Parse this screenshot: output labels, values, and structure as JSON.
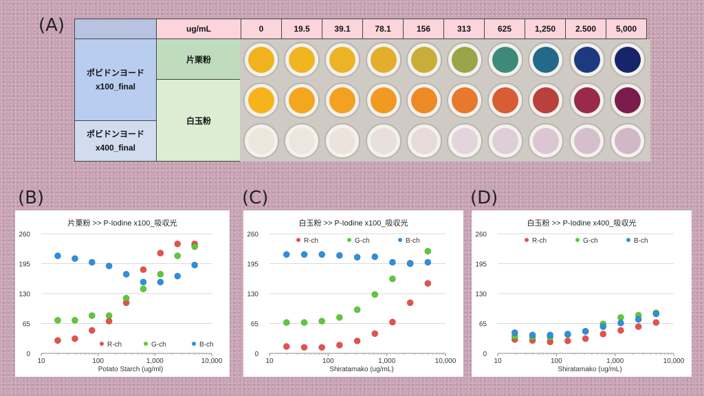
{
  "panels": {
    "a": "(A)",
    "b": "(B)",
    "c": "(C)",
    "d": "(D)"
  },
  "table": {
    "header_unit": "ug/mL",
    "concentrations": [
      "0",
      "19.5",
      "39.1",
      "78.1",
      "156",
      "313",
      "625",
      "1,250",
      "2.500",
      "5,000"
    ],
    "reagent1": [
      "ポビドンヨード",
      "x100_final"
    ],
    "reagent2": [
      "ポビドンヨード",
      "x400_final"
    ],
    "sample1": "片栗粉",
    "sample2": "白玉粉"
  },
  "colors": {
    "row1": [
      "#f2b21e",
      "#f0b520",
      "#ecb324",
      "#e4ad2a",
      "#c8ae38",
      "#9aa448",
      "#3e8a7a",
      "#236a8a",
      "#1b3a80",
      "#16246a"
    ],
    "row2": [
      "#f6b31c",
      "#f4a61e",
      "#f2a120",
      "#f09a22",
      "#ee8a26",
      "#e8782c",
      "#d85c34",
      "#b8413c",
      "#9a2a4c",
      "#7a1d4c"
    ],
    "row3": [
      "#ece6dc",
      "#ece6de",
      "#ebe3dc",
      "#e9dfdb",
      "#e6dadb",
      "#e4d4dc",
      "#dfcdd8",
      "#dbc6d3",
      "#d6bfcd",
      "#d1b8c6"
    ],
    "r": "#e8504a",
    "g": "#5cc93a",
    "b": "#2e8fe0"
  },
  "chart_data": [
    {
      "type": "scatter",
      "title": "片栗粉 >> P-Iodine x100_吸収光",
      "xlabel": "Potato Starch (ug/ml)",
      "ylabel": "",
      "x_scale": "log",
      "xlim": [
        10,
        10000
      ],
      "ylim": [
        0,
        260
      ],
      "x_ticks": [
        "10",
        "100",
        "1,000",
        "10,000"
      ],
      "y_ticks": [
        "0",
        "65",
        "130",
        "195",
        "260"
      ],
      "grid": "horizontal",
      "legend_placement": "bottom-right",
      "x": [
        19.5,
        39.1,
        78.1,
        156,
        313,
        625,
        1250,
        2500,
        5000
      ],
      "series": [
        {
          "name": "R-ch",
          "values": [
            28,
            32,
            50,
            70,
            110,
            182,
            218,
            238,
            238
          ]
        },
        {
          "name": "G-ch",
          "values": [
            72,
            72,
            82,
            82,
            120,
            140,
            172,
            212,
            232
          ]
        },
        {
          "name": "B-ch",
          "values": [
            212,
            206,
            198,
            190,
            172,
            155,
            155,
            168,
            192
          ]
        }
      ]
    },
    {
      "type": "scatter",
      "title": "白玉粉 >> P-Iodine x100_吸収光",
      "xlabel": "Shiratamako (ug/mL)",
      "ylabel": "",
      "x_scale": "log",
      "xlim": [
        10,
        10000
      ],
      "ylim": [
        0,
        260
      ],
      "x_ticks": [
        "10",
        "100",
        "1,000",
        "10,000"
      ],
      "y_ticks": [
        "0",
        "65",
        "130",
        "195",
        "260"
      ],
      "grid": "horizontal",
      "legend_placement": "top-left",
      "x": [
        19.5,
        39.1,
        78.1,
        156,
        313,
        625,
        1250,
        2500,
        5000
      ],
      "series": [
        {
          "name": "R-ch",
          "values": [
            15,
            13,
            13,
            18,
            27,
            43,
            68,
            110,
            152
          ]
        },
        {
          "name": "G-ch",
          "values": [
            67,
            67,
            70,
            78,
            95,
            128,
            162,
            196,
            222
          ]
        },
        {
          "name": "B-ch",
          "values": [
            215,
            215,
            215,
            213,
            209,
            210,
            198,
            195,
            198
          ]
        }
      ]
    },
    {
      "type": "scatter",
      "title": "白玉粉 >> P-Iodine x400_吸収光",
      "xlabel": "Shiratamako (ug/mL)",
      "ylabel": "",
      "x_scale": "log",
      "xlim": [
        10,
        10000
      ],
      "ylim": [
        0,
        260
      ],
      "x_ticks": [
        "10",
        "100",
        "1,000",
        "10,000"
      ],
      "y_ticks": [
        "0",
        "65",
        "130",
        "195",
        "260"
      ],
      "grid": "horizontal",
      "legend_placement": "top-left",
      "x": [
        19.5,
        39.1,
        78.1,
        156,
        313,
        625,
        1250,
        2500,
        5000
      ],
      "series": [
        {
          "name": "R-ch",
          "values": [
            30,
            28,
            25,
            27,
            32,
            42,
            50,
            58,
            67
          ]
        },
        {
          "name": "G-ch",
          "values": [
            37,
            35,
            35,
            41,
            48,
            64,
            78,
            83,
            88
          ]
        },
        {
          "name": "B-ch",
          "values": [
            45,
            40,
            40,
            42,
            48,
            58,
            66,
            74,
            86
          ]
        }
      ]
    }
  ]
}
